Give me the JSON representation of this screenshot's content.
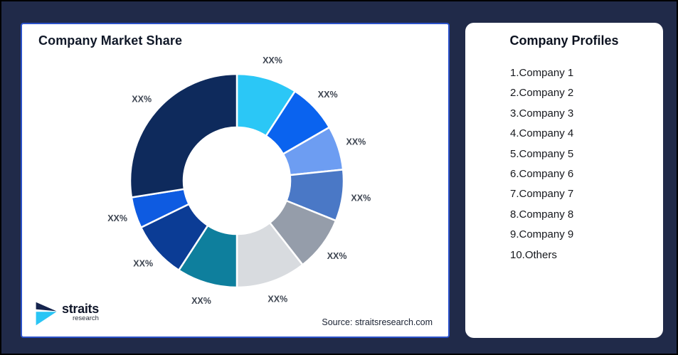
{
  "chart_data": {
    "type": "pie",
    "variant": "donut",
    "title": "Company Market Share",
    "source": "Source: straitsresearch.com",
    "inner_radius_ratio": 0.5,
    "legend_position": "none",
    "segments": [
      {
        "id": "segment-1",
        "label": "XX%",
        "degrees": 33,
        "percent_est": 9.2,
        "color": "#2BC7F6"
      },
      {
        "id": "segment-2",
        "label": "XX%",
        "degrees": 27,
        "percent_est": 7.5,
        "color": "#0A63EF"
      },
      {
        "id": "segment-3",
        "label": "XX%",
        "degrees": 24,
        "percent_est": 6.7,
        "color": "#6D9DF2"
      },
      {
        "id": "segment-4",
        "label": "XX%",
        "degrees": 28,
        "percent_est": 7.8,
        "color": "#4A78C6"
      },
      {
        "id": "segment-5",
        "label": "XX%",
        "degrees": 30,
        "percent_est": 8.3,
        "color": "#959DAA"
      },
      {
        "id": "segment-6",
        "label": "XX%",
        "degrees": 38,
        "percent_est": 10.6,
        "color": "#D8DBDF"
      },
      {
        "id": "segment-7",
        "label": "XX%",
        "degrees": 33,
        "percent_est": 9.2,
        "color": "#0E7F9D"
      },
      {
        "id": "segment-8",
        "label": "XX%",
        "degrees": 31,
        "percent_est": 8.6,
        "color": "#0B3C95"
      },
      {
        "id": "segment-9",
        "label": "XX%",
        "degrees": 17,
        "percent_est": 4.7,
        "color": "#0E5BE1"
      },
      {
        "id": "segment-10",
        "label": "XX%",
        "degrees": 99,
        "percent_est": 27.5,
        "color": "#0E2A5C"
      }
    ]
  },
  "chart_card": {
    "title": "Company Market Share",
    "source": "Source: straitsresearch.com"
  },
  "profiles": {
    "title": "Company Profiles",
    "items": [
      "1.Company 1",
      "2.Company 2",
      "3.Company 3",
      "4.Company 4",
      "5.Company 5",
      "6.Company 6",
      "7.Company 7",
      "8.Company 8",
      "9.Company 9",
      "10.Others"
    ]
  },
  "logo": {
    "name": "straits",
    "subtitle": "research",
    "icon": "straits-arrow-icon",
    "colors": {
      "navy": "#16254E",
      "cyan": "#29C5F5"
    }
  },
  "theme": {
    "page_background": "#202A49",
    "card_background": "#FFFFFF",
    "chart_card_border": "#2B52C9",
    "label_color": "#3E4551",
    "title_color": "#101828"
  }
}
